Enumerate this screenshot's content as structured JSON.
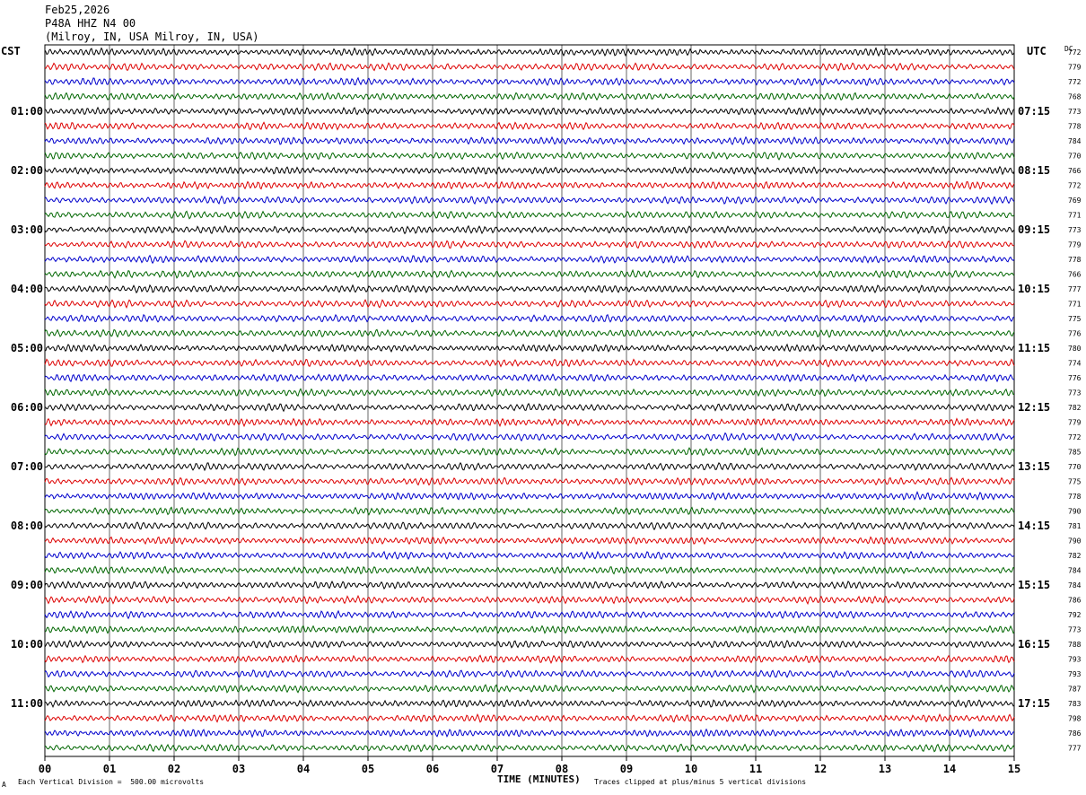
{
  "header": {
    "date": "Feb25,2026",
    "station": "P48A HHZ N4 00",
    "location": "(Milroy, IN, USA Milroy, IN, USA)"
  },
  "left_tz": "CST",
  "right_tz": "UTC",
  "dc_label": "DC",
  "footer": {
    "scale": "Each Vertical Division =  500.00 microvolts",
    "clip": "Traces clipped at plus/minus 5 vertical divisions",
    "mark": "A"
  },
  "colors": {
    "trace": [
      "#000000",
      "#dd0000",
      "#0000cc",
      "#006600"
    ],
    "grid": "#000000"
  },
  "chart_data": {
    "type": "line",
    "xlabel": "TIME (MINUTES)",
    "xlim": [
      0,
      15
    ],
    "x_ticks": [
      "00",
      "01",
      "02",
      "03",
      "04",
      "05",
      "06",
      "07",
      "08",
      "09",
      "10",
      "11",
      "12",
      "13",
      "14",
      "15"
    ],
    "left_hour_labels": [
      "01:00",
      "02:00",
      "03:00",
      "04:00",
      "05:00",
      "06:00",
      "07:00",
      "08:00",
      "09:00",
      "10:00",
      "11:00"
    ],
    "right_hour_labels": [
      "07:15",
      "08:15",
      "09:15",
      "10:15",
      "11:15",
      "12:15",
      "13:15",
      "14:15",
      "15:15",
      "16:15",
      "17:15"
    ],
    "dc_offsets": [
      772,
      779,
      772,
      768,
      773,
      778,
      784,
      770,
      766,
      772,
      769,
      771,
      773,
      779,
      778,
      766,
      777,
      771,
      775,
      776,
      780,
      774,
      776,
      773,
      782,
      779,
      772,
      785,
      770,
      775,
      778,
      790,
      781,
      790,
      782,
      784,
      784,
      786,
      792,
      773,
      788,
      793,
      793,
      787,
      783,
      798,
      786,
      777
    ]
  }
}
